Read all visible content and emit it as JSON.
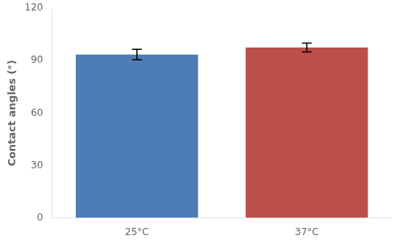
{
  "chart_data": {
    "type": "bar",
    "categories": [
      "25°C",
      "37°C"
    ],
    "values": [
      93.5,
      97.5
    ],
    "errors": [
      3.0,
      2.5
    ],
    "colors": [
      "#4e7db5",
      "#bc4f4a"
    ],
    "ylabel": "Contact angles (°)",
    "ylim": [
      0,
      120
    ],
    "yticks": [
      0,
      30,
      60,
      90,
      120
    ],
    "grid": false
  }
}
